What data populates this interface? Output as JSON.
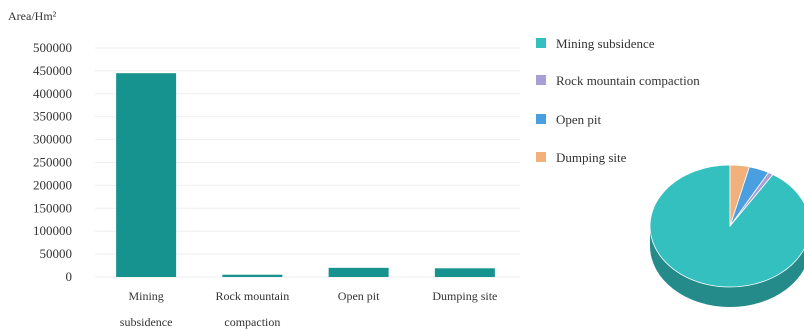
{
  "chart_data": [
    {
      "type": "bar",
      "ylabel": "Area/Hm²",
      "categories": [
        [
          "Mining",
          "subsidence"
        ],
        [
          "Rock mountain",
          "compaction"
        ],
        [
          "Open pit"
        ],
        [
          "Dumping site"
        ]
      ],
      "category_names": [
        "Mining subsidence",
        "Rock mountain compaction",
        "Open pit",
        "Dumping site"
      ],
      "values": [
        445000,
        5000,
        20000,
        19000
      ],
      "ylim": [
        0,
        500000
      ],
      "yticks": [
        0,
        50000,
        100000,
        150000,
        200000,
        250000,
        300000,
        350000,
        400000,
        450000,
        500000
      ],
      "ytick_labels": [
        "0",
        "50000",
        "100000",
        "150000",
        "200000",
        "250000",
        "300000",
        "350000",
        "400000",
        "450000",
        "500000"
      ],
      "bar_color": "#17938f",
      "grid": true
    },
    {
      "type": "pie",
      "style": "3d",
      "labels": [
        "Mining subsidence",
        "Rock mountain compaction",
        "Open pit",
        "Dumping site"
      ],
      "values": [
        445000,
        5000,
        20000,
        19000
      ],
      "colors": [
        "#33c0bf",
        "#a99fd6",
        "#4a9fe0",
        "#f2b07a"
      ],
      "legend": "right-top"
    }
  ]
}
